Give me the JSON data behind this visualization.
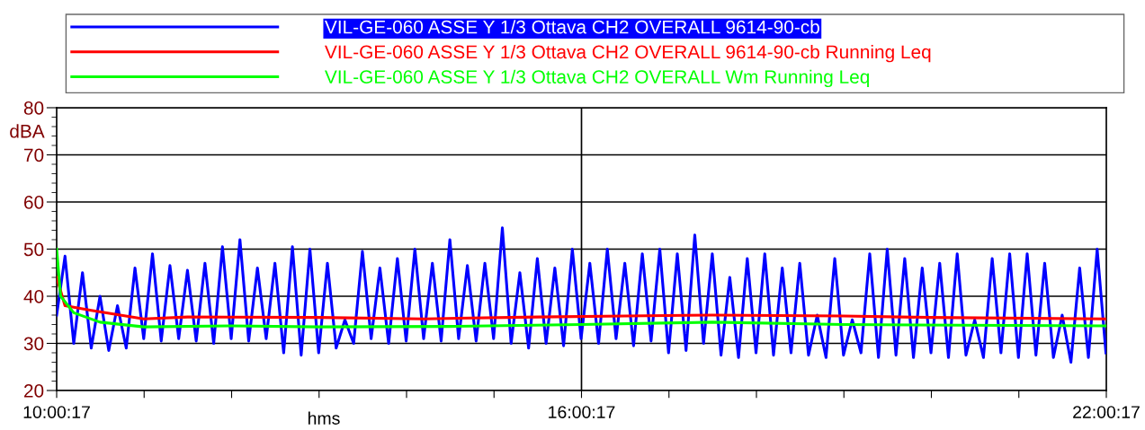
{
  "chart_data": {
    "type": "line",
    "xlabel": "hms",
    "ylabel": "dBA",
    "xlim": [
      10.0047,
      22.0047
    ],
    "xticks": [
      {
        "value": 10.0047,
        "label": "10:00:17"
      },
      {
        "value": 11.0047,
        "label": null
      },
      {
        "value": 12.0047,
        "label": null
      },
      {
        "value": 13.0047,
        "label": null
      },
      {
        "value": 14.0047,
        "label": null
      },
      {
        "value": 15.0047,
        "label": null
      },
      {
        "value": 16.0047,
        "label": "16:00:17"
      },
      {
        "value": 17.0047,
        "label": null
      },
      {
        "value": 18.0047,
        "label": null
      },
      {
        "value": 19.0047,
        "label": null
      },
      {
        "value": 20.0047,
        "label": null
      },
      {
        "value": 21.0047,
        "label": null
      },
      {
        "value": 22.0047,
        "label": "22:00:17"
      }
    ],
    "ylim": [
      20,
      80
    ],
    "yticks": [
      20,
      30,
      40,
      50,
      60,
      70,
      80
    ],
    "grid": "y",
    "legend": "top",
    "ref_lines": [
      {
        "axis": "x",
        "value": 16.0047,
        "color": "#000000"
      }
    ],
    "series": [
      {
        "name": "VIL-GE-060 ASSE Y 1/3 Ottava CH2 OVERALL 9614-90-cb",
        "color": "#0000ff",
        "x": [
          10.0047,
          10.1,
          10.2,
          10.3,
          10.4,
          10.5,
          10.6,
          10.7,
          10.8,
          10.9,
          11.0,
          11.1,
          11.2,
          11.3,
          11.4,
          11.5,
          11.6,
          11.7,
          11.8,
          11.9,
          12.0,
          12.1,
          12.2,
          12.3,
          12.4,
          12.5,
          12.6,
          12.7,
          12.8,
          12.9,
          13.0,
          13.1,
          13.2,
          13.3,
          13.4,
          13.5,
          13.6,
          13.7,
          13.8,
          13.9,
          14.0,
          14.1,
          14.2,
          14.3,
          14.4,
          14.5,
          14.6,
          14.7,
          14.8,
          14.9,
          15.0,
          15.1,
          15.2,
          15.3,
          15.4,
          15.5,
          15.6,
          15.7,
          15.8,
          15.9,
          16.0,
          16.1,
          16.2,
          16.3,
          16.4,
          16.5,
          16.6,
          16.7,
          16.8,
          16.9,
          17.0,
          17.1,
          17.2,
          17.3,
          17.4,
          17.5,
          17.6,
          17.7,
          17.8,
          17.9,
          18.0,
          18.1,
          18.2,
          18.3,
          18.4,
          18.5,
          18.6,
          18.7,
          18.8,
          18.9,
          19.0,
          19.1,
          19.2,
          19.3,
          19.4,
          19.5,
          19.6,
          19.7,
          19.8,
          19.9,
          20.0,
          20.1,
          20.2,
          20.3,
          20.4,
          20.5,
          20.6,
          20.7,
          20.8,
          20.9,
          21.0,
          21.1,
          21.2,
          21.3,
          21.4,
          21.5,
          21.6,
          21.7,
          21.8,
          21.9,
          22.0
        ],
        "values": [
          36,
          48.5,
          30,
          45,
          29,
          40,
          28.5,
          38,
          29,
          46,
          31,
          49,
          30.5,
          46.5,
          31,
          45.5,
          30.5,
          47,
          30,
          50.5,
          31,
          52,
          30.5,
          46,
          31,
          47,
          28,
          50.5,
          27.5,
          50,
          28,
          47,
          29,
          35,
          30,
          49.5,
          31,
          46,
          30,
          48,
          30.5,
          50,
          31,
          47,
          30.5,
          52,
          31,
          46.5,
          30.5,
          47,
          31,
          54.5,
          30,
          45,
          29,
          48,
          30,
          46,
          29.5,
          50,
          31,
          47,
          30,
          50,
          31,
          47,
          29.5,
          49,
          30.5,
          50,
          28,
          49,
          28.5,
          53,
          30,
          49,
          27.5,
          44,
          27,
          48,
          28,
          49,
          27.5,
          46,
          28,
          47,
          27.5,
          36,
          27,
          48,
          27.5,
          35,
          28,
          49,
          27,
          50,
          27.5,
          48,
          27,
          46,
          28,
          47,
          27,
          49,
          27.5,
          35,
          27,
          48,
          28,
          49,
          27,
          49,
          27.5,
          47,
          27,
          36,
          26,
          46,
          27,
          50,
          28
        ]
      },
      {
        "name": "VIL-GE-060 ASSE Y 1/3 Ottava CH2 OVERALL 9614-90-cb Running Leq",
        "color": "#ff0000",
        "x": [
          10.0047,
          10.1,
          10.4,
          11.0,
          11.5,
          13.0,
          14.2,
          15.5,
          16.5,
          17.5,
          19.0,
          20.0,
          22.0047
        ],
        "values": [
          44,
          38,
          37,
          35.2,
          35.6,
          35.5,
          35.2,
          35.6,
          35.8,
          36,
          35.8,
          35.5,
          35.2
        ]
      },
      {
        "name": "VIL-GE-060 ASSE Y 1/3 Ottava CH2 OVERALL Wm Running Leq",
        "color": "#00ff00",
        "x": [
          10.0047,
          10.05,
          10.2,
          10.5,
          11.0,
          12.0,
          13.0,
          14.5,
          16.0,
          17.5,
          19.0,
          22.0047
        ],
        "values": [
          50,
          40,
          36.5,
          34.5,
          33.5,
          33.7,
          33.5,
          33.6,
          34,
          34.5,
          34,
          33.7
        ]
      }
    ]
  }
}
